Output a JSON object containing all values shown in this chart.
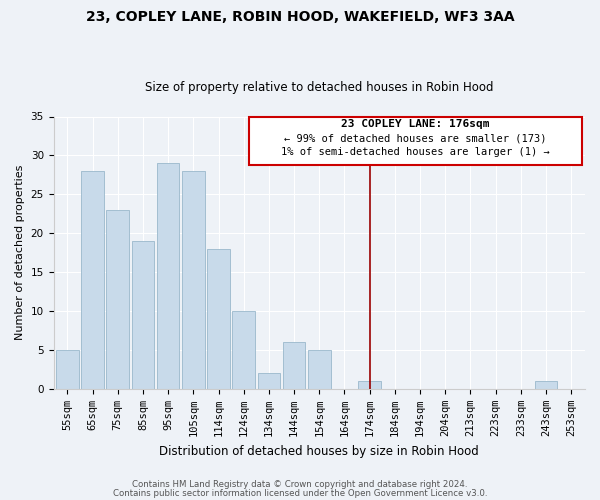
{
  "title": "23, COPLEY LANE, ROBIN HOOD, WAKEFIELD, WF3 3AA",
  "subtitle": "Size of property relative to detached houses in Robin Hood",
  "xlabel": "Distribution of detached houses by size in Robin Hood",
  "ylabel": "Number of detached properties",
  "categories": [
    "55sqm",
    "65sqm",
    "75sqm",
    "85sqm",
    "95sqm",
    "105sqm",
    "114sqm",
    "124sqm",
    "134sqm",
    "144sqm",
    "154sqm",
    "164sqm",
    "174sqm",
    "184sqm",
    "194sqm",
    "204sqm",
    "213sqm",
    "223sqm",
    "233sqm",
    "243sqm",
    "253sqm"
  ],
  "values": [
    5,
    28,
    23,
    19,
    29,
    28,
    18,
    10,
    2,
    6,
    5,
    0,
    1,
    0,
    0,
    0,
    0,
    0,
    0,
    1,
    0
  ],
  "bar_color": "#c8daea",
  "bar_edge_color": "#9ab8cc",
  "vline_color": "#990000",
  "annotation_title": "23 COPLEY LANE: 176sqm",
  "annotation_line1": "← 99% of detached houses are smaller (173)",
  "annotation_line2": "1% of semi-detached houses are larger (1) →",
  "annotation_box_color": "#ffffff",
  "annotation_box_edge": "#cc0000",
  "ylim": [
    0,
    35
  ],
  "yticks": [
    0,
    5,
    10,
    15,
    20,
    25,
    30,
    35
  ],
  "footer1": "Contains HM Land Registry data © Crown copyright and database right 2024.",
  "footer2": "Contains public sector information licensed under the Open Government Licence v3.0.",
  "background_color": "#eef2f7",
  "plot_background": "#eef2f7",
  "grid_color": "#ffffff",
  "title_fontsize": 10,
  "subtitle_fontsize": 8.5,
  "ylabel_fontsize": 8,
  "xlabel_fontsize": 8.5,
  "tick_fontsize": 7.5,
  "footer_fontsize": 6.2
}
